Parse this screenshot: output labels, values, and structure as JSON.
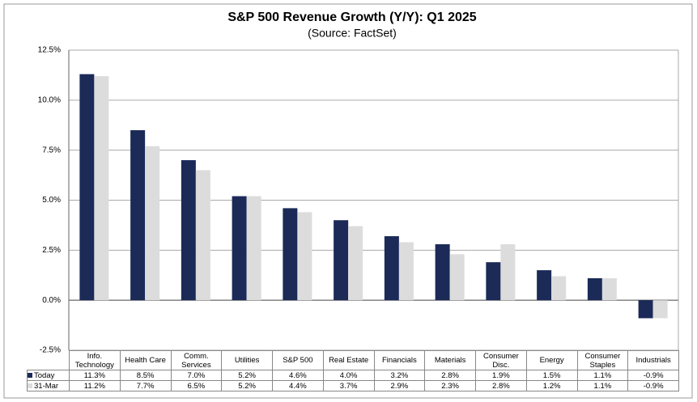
{
  "chart_data": {
    "type": "bar",
    "title": "S&P 500 Revenue Growth (Y/Y): Q1 2025",
    "subtitle": "(Source: FactSet)",
    "categories": [
      "Info. Technology",
      "Health Care",
      "Comm. Services",
      "Utilities",
      "S&P 500",
      "Real Estate",
      "Financials",
      "Materials",
      "Consumer Disc.",
      "Energy",
      "Consumer Staples",
      "Industrials"
    ],
    "series": [
      {
        "name": "Today",
        "color": "#1b2a57",
        "values": [
          11.3,
          8.5,
          7.0,
          5.2,
          4.6,
          4.0,
          3.2,
          2.8,
          1.9,
          1.5,
          1.1,
          -0.9
        ],
        "value_labels": [
          "11.3%",
          "8.5%",
          "7.0%",
          "5.2%",
          "4.6%",
          "4.0%",
          "3.2%",
          "2.8%",
          "1.9%",
          "1.5%",
          "1.1%",
          "-0.9%"
        ]
      },
      {
        "name": "31-Mar",
        "color": "#dcdcdc",
        "values": [
          11.2,
          7.7,
          6.5,
          5.2,
          4.4,
          3.7,
          2.9,
          2.3,
          2.8,
          1.2,
          1.1,
          -0.9
        ],
        "value_labels": [
          "11.2%",
          "7.7%",
          "6.5%",
          "5.2%",
          "4.4%",
          "3.7%",
          "2.9%",
          "2.3%",
          "2.8%",
          "1.2%",
          "1.1%",
          "-0.9%"
        ]
      }
    ],
    "ylim": [
      -2.5,
      12.5
    ],
    "yticks": [
      {
        "value": -2.5,
        "label": "-2.5%"
      },
      {
        "value": 0,
        "label": "0.0%"
      },
      {
        "value": 2.5,
        "label": "2.5%"
      },
      {
        "value": 5,
        "label": "5.0%"
      },
      {
        "value": 7.5,
        "label": "7.5%"
      },
      {
        "value": 10,
        "label": "10.0%"
      },
      {
        "value": 12.5,
        "label": "12.5%"
      }
    ],
    "grid": true
  }
}
